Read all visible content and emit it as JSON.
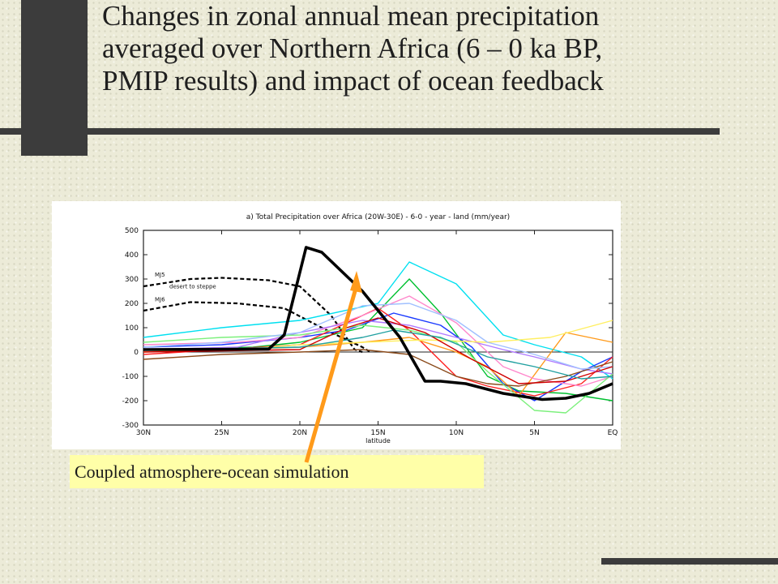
{
  "slide": {
    "title_lines": [
      "Changes in zonal annual mean precipitation",
      "averaged over Northern Africa (6 – 0 ka BP,",
      "PMIP results) and impact of ocean feedback"
    ],
    "caption": "Coupled atmosphere-ocean simulation"
  },
  "colors": {
    "accent_arrow": "#ff9a1a",
    "caption_bg": "#ffffa8",
    "decoration": "#3c3c3c"
  },
  "chart_data": {
    "type": "line",
    "title": "a) Total Precipitation over Africa (20W-30E) - 6-0 - year - land (mm/year)",
    "xlabel": "latitude",
    "ylabel": "",
    "categories": [
      "30N",
      "25N",
      "20N",
      "15N",
      "10N",
      "5N",
      "EQ"
    ],
    "x_direction": "30N to EQ (left to right)",
    "ylim": [
      -300,
      500
    ],
    "yticks": [
      500,
      400,
      300,
      200,
      100,
      0,
      -100,
      -200,
      -300
    ],
    "grid": false,
    "reference_labels": [
      "MJ5",
      "desert to steppe",
      "MJ6"
    ],
    "series": [
      {
        "color": "#000000",
        "style": "thick",
        "points": [
          [
            30,
            10
          ],
          [
            22,
            12
          ],
          [
            21,
            70
          ],
          [
            19.6,
            430
          ],
          [
            18.6,
            410
          ],
          [
            16,
            250
          ],
          [
            13.6,
            60
          ],
          [
            12,
            -120
          ],
          [
            11,
            -120
          ],
          [
            9.4,
            -130
          ],
          [
            7,
            -170
          ],
          [
            4.5,
            -195
          ],
          [
            3,
            -190
          ],
          [
            1.5,
            -170
          ],
          [
            0,
            -130
          ]
        ]
      },
      {
        "color": "#000000",
        "style": "dashed",
        "points": [
          [
            30,
            270
          ],
          [
            27,
            300
          ],
          [
            25,
            305
          ],
          [
            22,
            295
          ],
          [
            20,
            270
          ],
          [
            18,
            150
          ],
          [
            16.5,
            10
          ],
          [
            16,
            0
          ]
        ]
      },
      {
        "color": "#000000",
        "style": "dashed",
        "points": [
          [
            30,
            170
          ],
          [
            27,
            205
          ],
          [
            24,
            200
          ],
          [
            21,
            180
          ],
          [
            18,
            80
          ],
          [
            16,
            20
          ],
          [
            15.5,
            0
          ]
        ]
      },
      {
        "color": "#00e0f0",
        "points": [
          [
            30,
            60
          ],
          [
            25,
            100
          ],
          [
            20,
            130
          ],
          [
            15,
            200
          ],
          [
            13,
            370
          ],
          [
            10,
            280
          ],
          [
            7,
            70
          ],
          [
            5,
            30
          ],
          [
            2,
            -20
          ],
          [
            0,
            -110
          ]
        ]
      },
      {
        "color": "#00c030",
        "points": [
          [
            30,
            10
          ],
          [
            23,
            20
          ],
          [
            20,
            40
          ],
          [
            16,
            100
          ],
          [
            13,
            300
          ],
          [
            11,
            160
          ],
          [
            8,
            -100
          ],
          [
            6,
            -160
          ],
          [
            3,
            -170
          ],
          [
            0,
            -200
          ]
        ]
      },
      {
        "color": "#1a3aff",
        "points": [
          [
            30,
            20
          ],
          [
            25,
            30
          ],
          [
            20,
            60
          ],
          [
            17,
            90
          ],
          [
            14,
            160
          ],
          [
            11,
            110
          ],
          [
            9,
            20
          ],
          [
            7,
            -130
          ],
          [
            5,
            -200
          ],
          [
            2,
            -80
          ],
          [
            0,
            -20
          ]
        ]
      },
      {
        "color": "#ff2020",
        "points": [
          [
            30,
            -10
          ],
          [
            25,
            10
          ],
          [
            20,
            30
          ],
          [
            17,
            120
          ],
          [
            15,
            180
          ],
          [
            13,
            90
          ],
          [
            10,
            -100
          ],
          [
            8,
            -140
          ],
          [
            5,
            -180
          ],
          [
            2,
            -130
          ],
          [
            0,
            -20
          ]
        ]
      },
      {
        "color": "#ff9a1a",
        "points": [
          [
            30,
            0
          ],
          [
            25,
            10
          ],
          [
            20,
            20
          ],
          [
            16,
            40
          ],
          [
            13,
            60
          ],
          [
            10,
            0
          ],
          [
            8,
            -60
          ],
          [
            6,
            -180
          ],
          [
            3,
            80
          ],
          [
            0,
            40
          ]
        ]
      },
      {
        "color": "#ff88cc",
        "points": [
          [
            30,
            30
          ],
          [
            24,
            40
          ],
          [
            20,
            60
          ],
          [
            16,
            150
          ],
          [
            13,
            230
          ],
          [
            10,
            120
          ],
          [
            7,
            -60
          ],
          [
            5,
            -110
          ],
          [
            2,
            -140
          ],
          [
            0,
            -100
          ]
        ]
      },
      {
        "color": "#b07aff",
        "points": [
          [
            30,
            10
          ],
          [
            24,
            20
          ],
          [
            20,
            80
          ],
          [
            16,
            130
          ],
          [
            13,
            110
          ],
          [
            10,
            60
          ],
          [
            7,
            10
          ],
          [
            5,
            -20
          ],
          [
            2,
            -70
          ],
          [
            0,
            -90
          ]
        ]
      },
      {
        "color": "#ffef60",
        "points": [
          [
            30,
            0
          ],
          [
            24,
            10
          ],
          [
            20,
            30
          ],
          [
            16,
            40
          ],
          [
            12,
            50
          ],
          [
            8,
            40
          ],
          [
            4,
            60
          ],
          [
            0,
            130
          ]
        ]
      },
      {
        "color": "#8a4a1a",
        "points": [
          [
            30,
            -30
          ],
          [
            25,
            -10
          ],
          [
            20,
            0
          ],
          [
            16,
            10
          ],
          [
            13,
            -10
          ],
          [
            10,
            -100
          ],
          [
            8,
            -130
          ],
          [
            6,
            -140
          ],
          [
            3,
            -100
          ],
          [
            0,
            -40
          ]
        ]
      },
      {
        "color": "#7cf07c",
        "points": [
          [
            30,
            40
          ],
          [
            25,
            60
          ],
          [
            20,
            70
          ],
          [
            16,
            110
          ],
          [
            13,
            90
          ],
          [
            10,
            40
          ],
          [
            8,
            -80
          ],
          [
            5,
            -240
          ],
          [
            3,
            -250
          ],
          [
            0,
            -90
          ]
        ]
      },
      {
        "color": "#a0c0ff",
        "points": [
          [
            30,
            20
          ],
          [
            25,
            40
          ],
          [
            20,
            80
          ],
          [
            16,
            190
          ],
          [
            13,
            200
          ],
          [
            10,
            130
          ],
          [
            8,
            40
          ],
          [
            5,
            -10
          ],
          [
            2,
            -70
          ],
          [
            0,
            -60
          ]
        ]
      },
      {
        "color": "#d00000",
        "points": [
          [
            30,
            0
          ],
          [
            25,
            5
          ],
          [
            20,
            10
          ],
          [
            17,
            100
          ],
          [
            15,
            140
          ],
          [
            12,
            80
          ],
          [
            9,
            -30
          ],
          [
            6,
            -130
          ],
          [
            3,
            -120
          ],
          [
            0,
            -60
          ]
        ]
      },
      {
        "color": "#20a0a0",
        "points": [
          [
            30,
            10
          ],
          [
            24,
            15
          ],
          [
            20,
            20
          ],
          [
            16,
            60
          ],
          [
            14,
            90
          ],
          [
            11,
            60
          ],
          [
            8,
            -20
          ],
          [
            5,
            -60
          ],
          [
            2,
            -110
          ],
          [
            0,
            -100
          ]
        ]
      }
    ]
  }
}
